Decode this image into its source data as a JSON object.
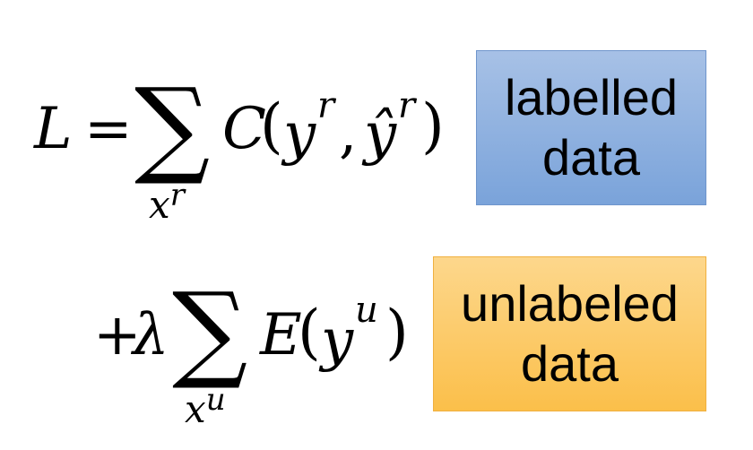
{
  "formula": {
    "line1": {
      "lhs": "L",
      "equals": "=",
      "sum_symbol": "∑",
      "sum_subscript_var": "x",
      "sum_subscript_sup": "r",
      "func": "C",
      "open_paren": "(",
      "arg1_var": "y",
      "arg1_sup": "r",
      "comma": ",",
      "arg2_var": "ŷ",
      "arg2_sup": "r",
      "close_paren": ")"
    },
    "line2": {
      "plus": "+",
      "lambda": "λ",
      "sum_symbol": "∑",
      "sum_subscript_var": "x",
      "sum_subscript_sup": "u",
      "func": "E",
      "open_paren": "(",
      "arg_var": "y",
      "arg_sup": "u",
      "close_paren": ")"
    }
  },
  "labels": {
    "labelled": {
      "line1": "labelled",
      "line2": "data",
      "color": "#7aa3da"
    },
    "unlabeled": {
      "line1": "unlabeled",
      "line2": "data",
      "color": "#fbbf4a"
    }
  }
}
